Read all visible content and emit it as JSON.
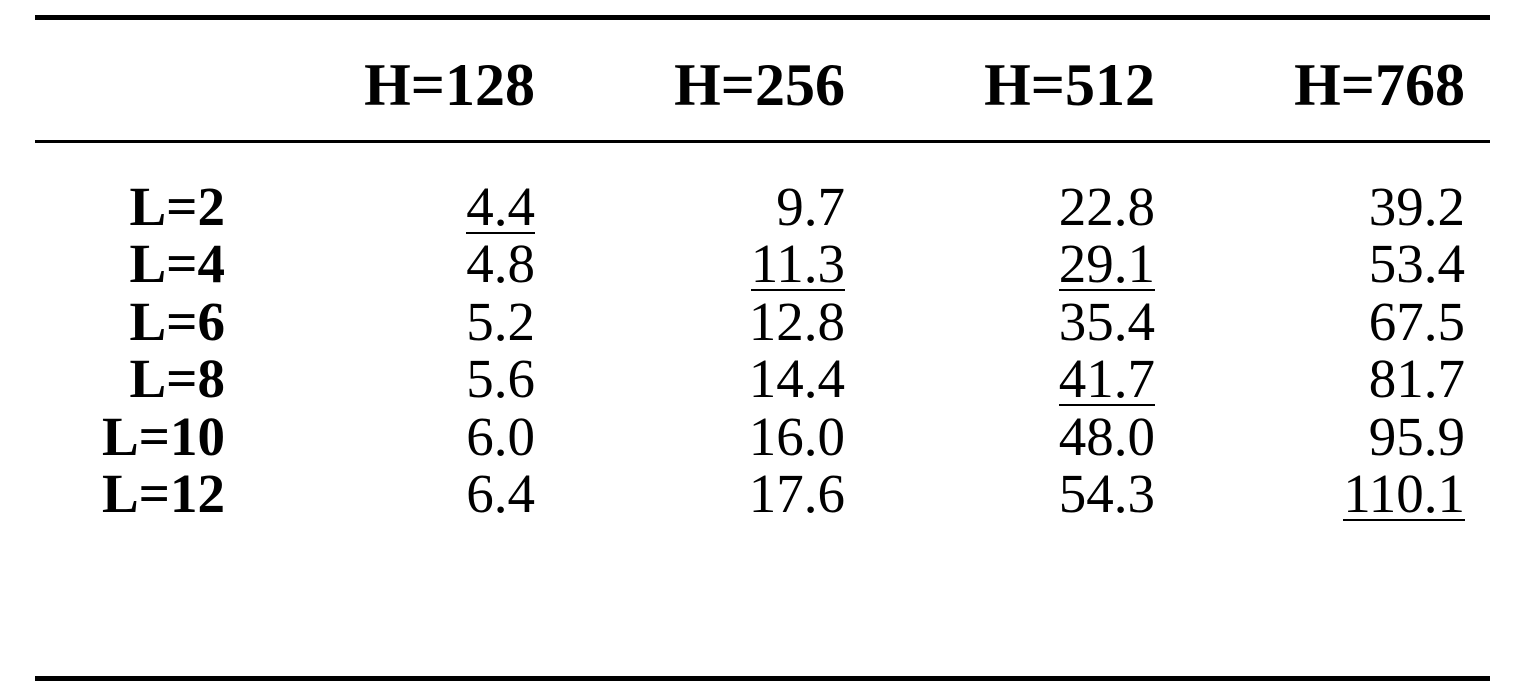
{
  "table": {
    "columns": [
      "",
      "H=128",
      "H=256",
      "H=512",
      "H=768"
    ],
    "rows": [
      {
        "label": "L=2",
        "values": [
          "4.4",
          "9.7",
          "22.8",
          "39.2"
        ],
        "underlined": [
          true,
          false,
          false,
          false
        ]
      },
      {
        "label": "L=4",
        "values": [
          "4.8",
          "11.3",
          "29.1",
          "53.4"
        ],
        "underlined": [
          false,
          true,
          true,
          false
        ]
      },
      {
        "label": "L=6",
        "values": [
          "5.2",
          "12.8",
          "35.4",
          "67.5"
        ],
        "underlined": [
          false,
          false,
          false,
          false
        ]
      },
      {
        "label": "L=8",
        "values": [
          "5.6",
          "14.4",
          "41.7",
          "81.7"
        ],
        "underlined": [
          false,
          false,
          true,
          false
        ]
      },
      {
        "label": "L=10",
        "values": [
          "6.0",
          "16.0",
          "48.0",
          "95.9"
        ],
        "underlined": [
          false,
          false,
          false,
          false
        ]
      },
      {
        "label": "L=12",
        "values": [
          "6.4",
          "17.6",
          "54.3",
          "110.1"
        ],
        "underlined": [
          false,
          false,
          false,
          true
        ]
      }
    ]
  }
}
